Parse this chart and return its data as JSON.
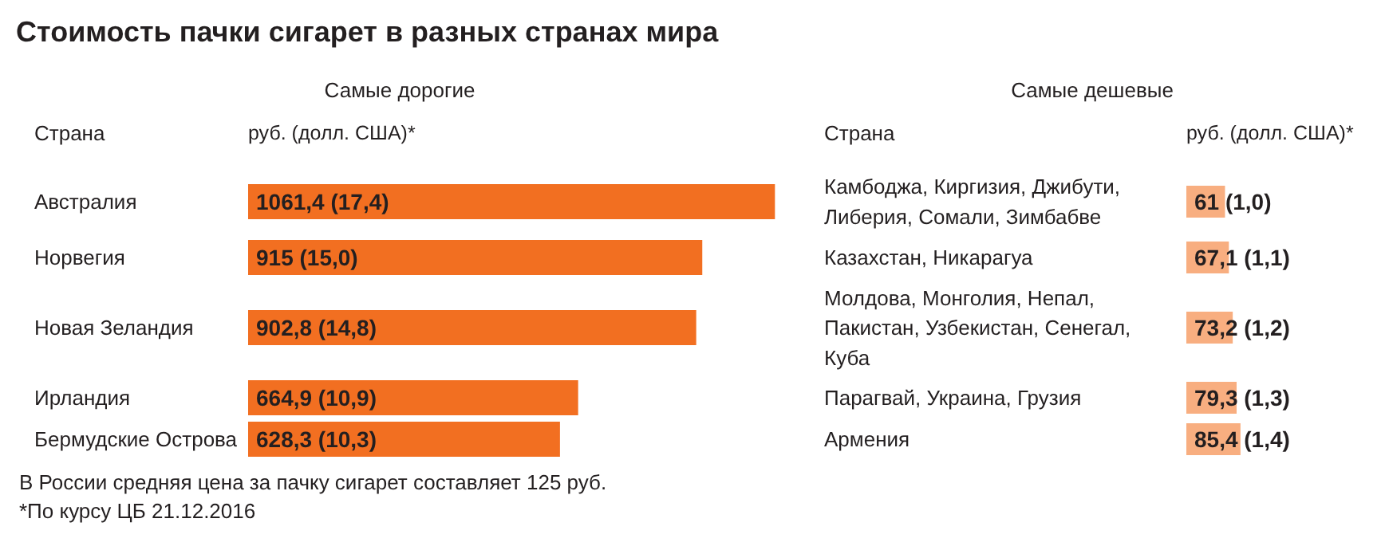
{
  "chart_data": [
    {
      "type": "bar",
      "orientation": "horizontal",
      "title": "Стоимость пачки сигарет в разных странах мира",
      "subtitle": "Самые дорогие",
      "ylabel": "Страна",
      "xlabel": "руб. (долл. США)*",
      "tick_labels": false,
      "color": "#f26f21",
      "categories": [
        "Австралия",
        "Норвегия",
        "Новая Зеландия",
        "Ирландия",
        "Бермудские Острова"
      ],
      "values": [
        1061.4,
        915,
        902.8,
        664.9,
        628.3
      ],
      "value_labels": [
        "1061,4 (17,4)",
        "915 (15,0)",
        "902,8 (14,8)",
        "664,9 (10,9)",
        "628,3 (10,3)"
      ],
      "annotations": [
        "В России средняя цена за пачку сигарет составляет 125 руб.",
        "*По курсу ЦБ 21.12.2016"
      ]
    },
    {
      "type": "bar",
      "orientation": "horizontal",
      "subtitle": "Самые дешевые",
      "ylabel": "Страна",
      "xlabel": "руб. (долл. США)*",
      "tick_labels": false,
      "color": "#f8ae80",
      "categories": [
        "Камбоджа, Киргизия, Джибути,\nЛиберия, Сомали, Зимбабве",
        "Казахстан, Никарагуа",
        "Молдова, Монголия, Непал,\nПакистан, Узбекистан, Сенегал,\nКуба",
        "Парагвай, Украина, Грузия",
        "Армения"
      ],
      "values": [
        61,
        67.1,
        73.2,
        79.3,
        85.4
      ],
      "value_labels": [
        "61 (1,0)",
        "67,1 (1,1)",
        "73,2 (1,2)",
        "79,3 (1,3)",
        "85,4 (1,4)"
      ]
    }
  ]
}
